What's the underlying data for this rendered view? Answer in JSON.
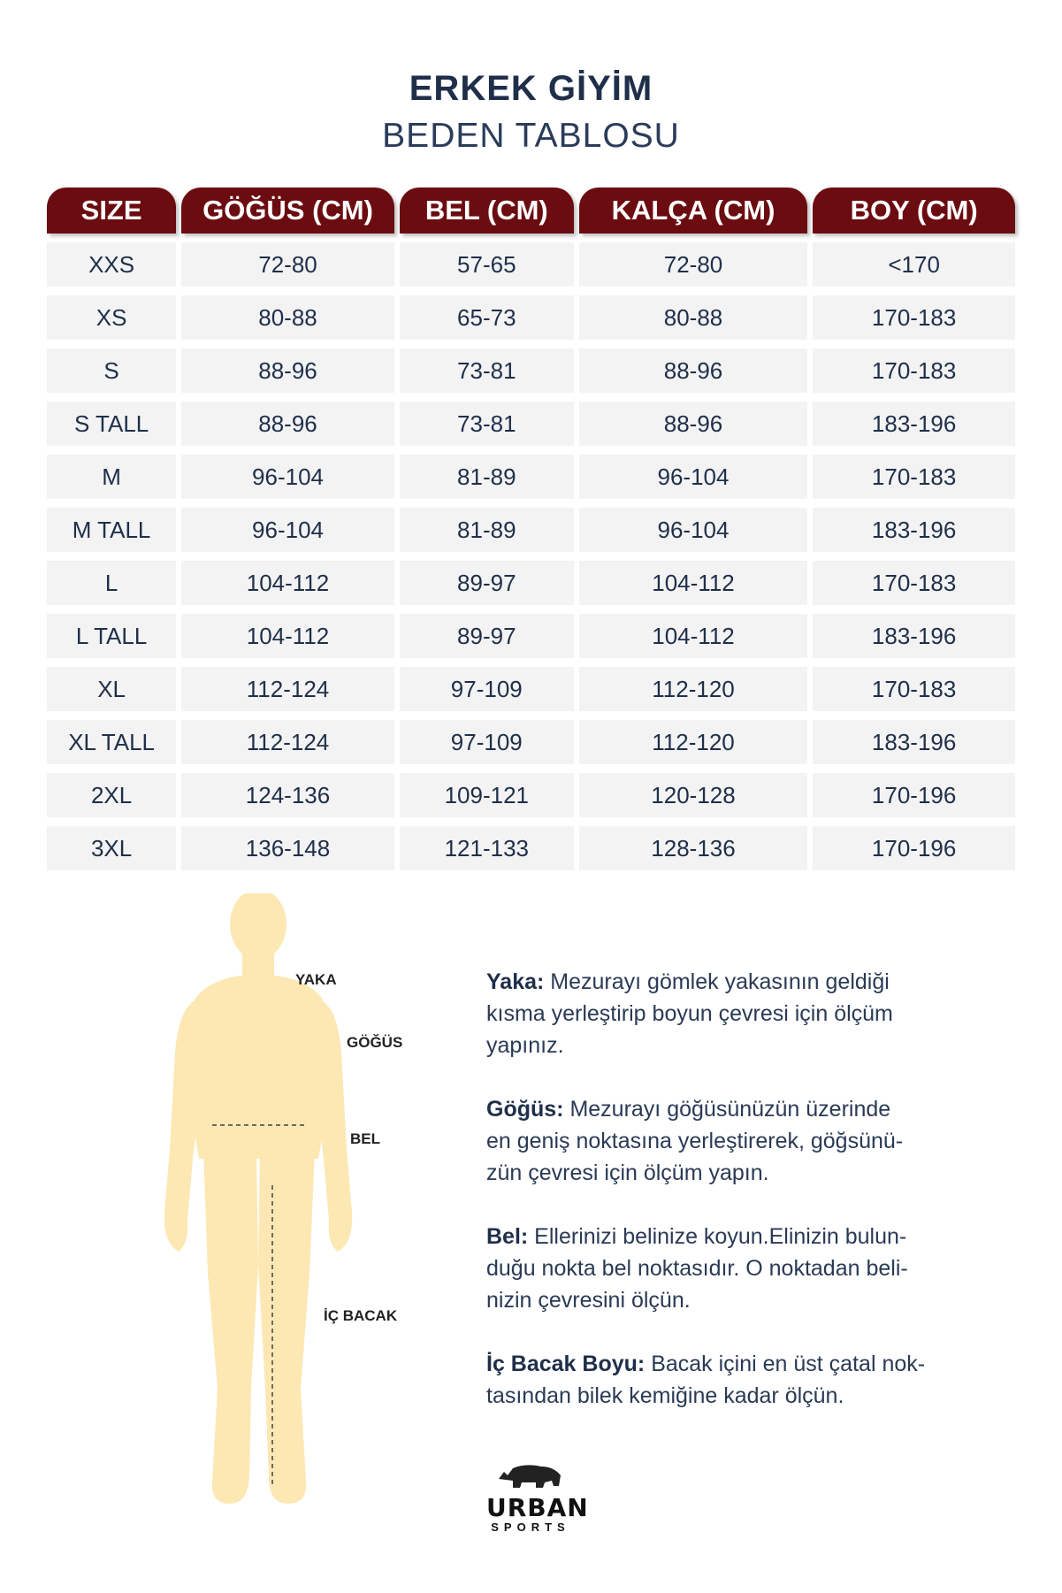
{
  "title": "ERKEK GİYİM",
  "subtitle": "BEDEN TABLOSU",
  "table": {
    "headers": [
      "SIZE",
      "GÖĞÜS (CM)",
      "BEL (CM)",
      "KALÇA (CM)",
      "BOY (CM)"
    ],
    "rows": [
      [
        "XXS",
        "72-80",
        "57-65",
        "72-80",
        "<170"
      ],
      [
        "XS",
        "80-88",
        "65-73",
        "80-88",
        "170-183"
      ],
      [
        "S",
        "88-96",
        "73-81",
        "88-96",
        "170-183"
      ],
      [
        "S TALL",
        "88-96",
        "73-81",
        "88-96",
        "183-196"
      ],
      [
        "M",
        "96-104",
        "81-89",
        "96-104",
        "170-183"
      ],
      [
        "M TALL",
        "96-104",
        "81-89",
        "96-104",
        "183-196"
      ],
      [
        "L",
        "104-112",
        "89-97",
        "104-112",
        "170-183"
      ],
      [
        "L TALL",
        "104-112",
        "89-97",
        "104-112",
        "183-196"
      ],
      [
        "XL",
        "112-124",
        "97-109",
        "112-120",
        "170-183"
      ],
      [
        "XL TALL",
        "112-124",
        "97-109",
        "112-120",
        "183-196"
      ],
      [
        "2XL",
        "124-136",
        "109-121",
        "120-128",
        "170-196"
      ],
      [
        "3XL",
        "136-148",
        "121-133",
        "128-136",
        "170-196"
      ]
    ]
  },
  "figure_labels": {
    "yaka": "YAKA",
    "gogus": "GÖĞÜS",
    "bel": "BEL",
    "ic_bacak": "İÇ BACAK"
  },
  "descriptions": [
    {
      "term": "Yaka:",
      "lines": [
        " Mezurayı gömlek yakasının geldiği",
        "kısma yerleştirip boyun çevresi için ölçüm",
        "yapınız."
      ]
    },
    {
      "term": "Göğüs:",
      "lines": [
        " Mezurayı göğüsünüzün üzerinde",
        "en geniş noktasına yerleştirerek, göğsünü-",
        "zün çevresi için ölçüm yapın."
      ]
    },
    {
      "term": "Bel:",
      "lines": [
        " Ellerinizi belinize koyun.Elinizin bulun-",
        "duğu nokta bel noktasıdır. O noktadan beli-",
        "nizin çevresini ölçün."
      ]
    },
    {
      "term": "İç Bacak Boyu:",
      "lines": [
        " Bacak içini en üst çatal nok-",
        "tasından bilek kemiğine kadar ölçün."
      ]
    }
  ],
  "logo": {
    "line1": "URBAN",
    "line2": "SPORTS"
  },
  "colors": {
    "header_bg": "#6b0c10",
    "cell_bg": "#f3f3f3",
    "body_fill": "#fde7b3",
    "text": "#1f2f4a"
  }
}
